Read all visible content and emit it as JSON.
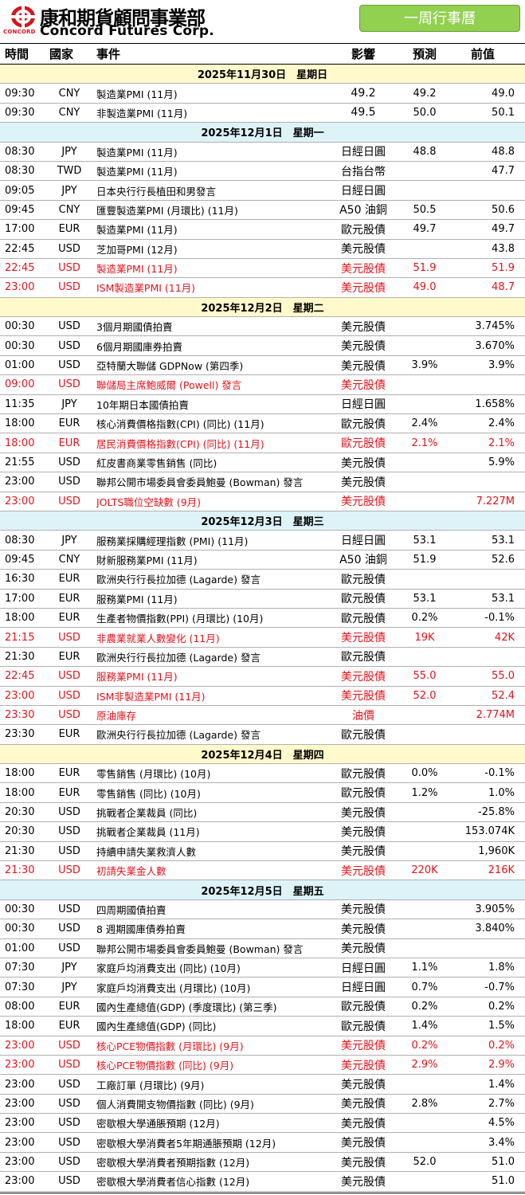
{
  "brand": {
    "name_cn": "康和期貨顧問事業部",
    "name_en": "Concord Futures Corp.",
    "logo_text": "CONCORD",
    "badge": "一周行事曆"
  },
  "columns": {
    "time": "時間",
    "country": "國家",
    "event": "事件",
    "impact": "影響",
    "forecast": "預測",
    "previous": "前值"
  },
  "highlight_color": "#e0141c",
  "days": [
    {
      "date": "2025年11月30日　星期日",
      "rows": [
        {
          "time": "09:30",
          "country": "CNY",
          "event": "製造業PMI (11月)",
          "impact": "49.2",
          "forecast": "49.2",
          "previous": "49.0",
          "hl": false
        },
        {
          "time": "09:30",
          "country": "CNY",
          "event": "非製造業PMI (11月)",
          "impact": "49.5",
          "forecast": "50.0",
          "previous": "50.1",
          "hl": false
        }
      ]
    },
    {
      "date": "2025年12月1日　星期一",
      "rows": [
        {
          "time": "08:30",
          "country": "JPY",
          "event": "製造業PMI (11月)",
          "impact": "日經日圓",
          "forecast": "48.8",
          "previous": "48.8",
          "hl": false
        },
        {
          "time": "08:30",
          "country": "TWD",
          "event": "製造業PMI (11月)",
          "impact": "台指台幣",
          "forecast": "",
          "previous": "47.7",
          "hl": false
        },
        {
          "time": "09:05",
          "country": "JPY",
          "event": "日本央行行長植田和男發言",
          "impact": "日經日圓",
          "forecast": "",
          "previous": "",
          "hl": false
        },
        {
          "time": "09:45",
          "country": "CNY",
          "event": "匯豐製造業PMI (月環比) (11月)",
          "impact": "A50 油銅",
          "forecast": "50.5",
          "previous": "50.6",
          "hl": false
        },
        {
          "time": "17:00",
          "country": "EUR",
          "event": "製造業PMI (11月)",
          "impact": "歐元股債",
          "forecast": "49.7",
          "previous": "49.7",
          "hl": false
        },
        {
          "time": "22:45",
          "country": "USD",
          "event": "芝加哥PMI (12月)",
          "impact": "美元股債",
          "forecast": "",
          "previous": "43.8",
          "hl": false
        },
        {
          "time": "22:45",
          "country": "USD",
          "event": "製造業PMI (11月)",
          "impact": "美元股債",
          "forecast": "51.9",
          "previous": "51.9",
          "hl": true
        },
        {
          "time": "23:00",
          "country": "USD",
          "event": "ISM製造業PMI (11月)",
          "impact": "美元股債",
          "forecast": "49.0",
          "previous": "48.7",
          "hl": true
        }
      ]
    },
    {
      "date": "2025年12月2日　星期二",
      "rows": [
        {
          "time": "00:30",
          "country": "USD",
          "event": "3個月期國債拍賣",
          "impact": "美元股債",
          "forecast": "",
          "previous": "3.745%",
          "hl": false
        },
        {
          "time": "00:30",
          "country": "USD",
          "event": "6個月期國庫券拍賣",
          "impact": "美元股債",
          "forecast": "",
          "previous": "3.670%",
          "hl": false
        },
        {
          "time": "01:00",
          "country": "USD",
          "event": "亞特蘭大聯儲 GDPNow (第四季)",
          "impact": "美元股債",
          "forecast": "3.9%",
          "previous": "3.9%",
          "hl": false
        },
        {
          "time": "09:00",
          "country": "USD",
          "event": "聯儲局主席鮑威爾 (Powell) 發言",
          "impact": "美元股債",
          "forecast": "",
          "previous": "",
          "hl": true
        },
        {
          "time": "11:35",
          "country": "JPY",
          "event": "10年期日本國債拍賣",
          "impact": "日經日圓",
          "forecast": "",
          "previous": "1.658%",
          "hl": false
        },
        {
          "time": "18:00",
          "country": "EUR",
          "event": "核心消費價格指數(CPI) (同比) (11月)",
          "impact": "歐元股債",
          "forecast": "2.4%",
          "previous": "2.4%",
          "hl": false
        },
        {
          "time": "18:00",
          "country": "EUR",
          "event": "居民消費價格指數(CPI) (同比) (11月)",
          "impact": "歐元股債",
          "forecast": "2.1%",
          "previous": "2.1%",
          "hl": true
        },
        {
          "time": "21:55",
          "country": "USD",
          "event": "紅皮書商業零售銷售 (同比)",
          "impact": "美元股債",
          "forecast": "",
          "previous": "5.9%",
          "hl": false
        },
        {
          "time": "23:00",
          "country": "USD",
          "event": "聯邦公開市場委員會委員鮑曼 (Bowman) 發言",
          "impact": "美元股債",
          "forecast": "",
          "previous": "",
          "hl": false
        },
        {
          "time": "23:00",
          "country": "USD",
          "event": "JOLTS職位空缺數 (9月)",
          "impact": "美元股債",
          "forecast": "",
          "previous": "7.227M",
          "hl": true
        }
      ]
    },
    {
      "date": "2025年12月3日　星期三",
      "rows": [
        {
          "time": "08:30",
          "country": "JPY",
          "event": "服務業採購經理指數 (PMI) (11月)",
          "impact": "日經日圓",
          "forecast": "53.1",
          "previous": "53.1",
          "hl": false
        },
        {
          "time": "09:45",
          "country": "CNY",
          "event": "財新服務業PMI (11月)",
          "impact": "A50 油銅",
          "forecast": "51.9",
          "previous": "52.6",
          "hl": false
        },
        {
          "time": "16:30",
          "country": "EUR",
          "event": "歐洲央行行長拉加德 (Lagarde) 發言",
          "impact": "歐元股債",
          "forecast": "",
          "previous": "",
          "hl": false
        },
        {
          "time": "17:00",
          "country": "EUR",
          "event": "服務業PMI (11月)",
          "impact": "歐元股債",
          "forecast": "53.1",
          "previous": "53.1",
          "hl": false
        },
        {
          "time": "18:00",
          "country": "EUR",
          "event": "生產者物價指數(PPI) (月環比) (10月)",
          "impact": "歐元股債",
          "forecast": "0.2%",
          "previous": "-0.1%",
          "hl": false
        },
        {
          "time": "21:15",
          "country": "USD",
          "event": "非農業就業人數變化 (11月)",
          "impact": "美元股債",
          "forecast": "19K",
          "previous": "42K",
          "hl": true
        },
        {
          "time": "21:30",
          "country": "EUR",
          "event": "歐洲央行行長拉加德 (Lagarde) 發言",
          "impact": "歐元股債",
          "forecast": "",
          "previous": "",
          "hl": false
        },
        {
          "time": "22:45",
          "country": "USD",
          "event": "服務業PMI (11月)",
          "impact": "美元股債",
          "forecast": "55.0",
          "previous": "55.0",
          "hl": true
        },
        {
          "time": "23:00",
          "country": "USD",
          "event": "ISM非製造業PMI (11月)",
          "impact": "美元股債",
          "forecast": "52.0",
          "previous": "52.4",
          "hl": true
        },
        {
          "time": "23:30",
          "country": "USD",
          "event": "原油庫存",
          "impact": "油價",
          "forecast": "",
          "previous": "2.774M",
          "hl": true
        },
        {
          "time": "23:30",
          "country": "EUR",
          "event": "歐洲央行行長拉加德 (Lagarde) 發言",
          "impact": "歐元股債",
          "forecast": "",
          "previous": "",
          "hl": false
        }
      ]
    },
    {
      "date": "2025年12月4日　星期四",
      "rows": [
        {
          "time": "18:00",
          "country": "EUR",
          "event": "零售銷售 (月環比) (10月)",
          "impact": "歐元股債",
          "forecast": "0.0%",
          "previous": "-0.1%",
          "hl": false
        },
        {
          "time": "18:00",
          "country": "EUR",
          "event": "零售銷售 (同比) (10月)",
          "impact": "歐元股債",
          "forecast": "1.2%",
          "previous": "1.0%",
          "hl": false
        },
        {
          "time": "20:30",
          "country": "USD",
          "event": "挑戰者企業裁員 (同比)",
          "impact": "美元股債",
          "forecast": "",
          "previous": "-25.8%",
          "hl": false
        },
        {
          "time": "20:30",
          "country": "USD",
          "event": "挑戰者企業裁員 (11月)",
          "impact": "美元股債",
          "forecast": "",
          "previous": "153.074K",
          "hl": false
        },
        {
          "time": "21:30",
          "country": "USD",
          "event": "持續申請失業救濟人數",
          "impact": "美元股債",
          "forecast": "",
          "previous": "1,960K",
          "hl": false
        },
        {
          "time": "21:30",
          "country": "USD",
          "event": "初請失業金人數",
          "impact": "美元股債",
          "forecast": "220K",
          "previous": "216K",
          "hl": true
        }
      ]
    },
    {
      "date": "2025年12月5日　星期五",
      "rows": [
        {
          "time": "00:30",
          "country": "USD",
          "event": "四周期國債拍賣",
          "impact": "美元股債",
          "forecast": "",
          "previous": "3.905%",
          "hl": false
        },
        {
          "time": "00:30",
          "country": "USD",
          "event": "8 週期國庫債券拍賣",
          "impact": "美元股債",
          "forecast": "",
          "previous": "3.840%",
          "hl": false
        },
        {
          "time": "01:00",
          "country": "USD",
          "event": "聯邦公開市場委員會委員鮑曼 (Bowman) 發言",
          "impact": "美元股債",
          "forecast": "",
          "previous": "",
          "hl": false
        },
        {
          "time": "07:30",
          "country": "JPY",
          "event": "家庭戶均消費支出 (同比) (10月)",
          "impact": "日經日圓",
          "forecast": "1.1%",
          "previous": "1.8%",
          "hl": false
        },
        {
          "time": "07:30",
          "country": "JPY",
          "event": "家庭戶均消費支出 (月環比) (10月)",
          "impact": "日經日圓",
          "forecast": "0.7%",
          "previous": "-0.7%",
          "hl": false
        },
        {
          "time": "08:00",
          "country": "EUR",
          "event": "國內生產總值(GDP) (季度環比) (第三季)",
          "impact": "歐元股債",
          "forecast": "0.2%",
          "previous": "0.2%",
          "hl": false
        },
        {
          "time": "18:00",
          "country": "EUR",
          "event": "國內生產總值(GDP) (同比)",
          "impact": "歐元股債",
          "forecast": "1.4%",
          "previous": "1.5%",
          "hl": false
        },
        {
          "time": "23:00",
          "country": "USD",
          "event": "核心PCE物價指數 (月環比) (9月)",
          "impact": "美元股債",
          "forecast": "0.2%",
          "previous": "0.2%",
          "hl": true
        },
        {
          "time": "23:00",
          "country": "USD",
          "event": "核心PCE物價指數 (同比) (9月)",
          "impact": "美元股債",
          "forecast": "2.9%",
          "previous": "2.9%",
          "hl": true
        },
        {
          "time": "23:00",
          "country": "USD",
          "event": "工廠訂單 (月環比) (9月)",
          "impact": "美元股債",
          "forecast": "",
          "previous": "1.4%",
          "hl": false
        },
        {
          "time": "23:00",
          "country": "USD",
          "event": "個人消費開支物價指數 (同比) (9月)",
          "impact": "美元股債",
          "forecast": "2.8%",
          "previous": "2.7%",
          "hl": false
        },
        {
          "time": "23:00",
          "country": "USD",
          "event": "密歇根大學通脹預期 (12月)",
          "impact": "美元股債",
          "forecast": "",
          "previous": "4.5%",
          "hl": false
        },
        {
          "time": "23:00",
          "country": "USD",
          "event": "密歇根大學消費者5年期通脹預期 (12月)",
          "impact": "美元股債",
          "forecast": "",
          "previous": "3.4%",
          "hl": false
        },
        {
          "time": "23:00",
          "country": "USD",
          "event": "密歇根大學消費者預期指數 (12月)",
          "impact": "美元股債",
          "forecast": "52.0",
          "previous": "51.0",
          "hl": false
        },
        {
          "time": "23:00",
          "country": "USD",
          "event": "密歇根大學消費者信心指數 (12月)",
          "impact": "美元股債",
          "forecast": "",
          "previous": "51.0",
          "hl": false
        }
      ]
    }
  ]
}
